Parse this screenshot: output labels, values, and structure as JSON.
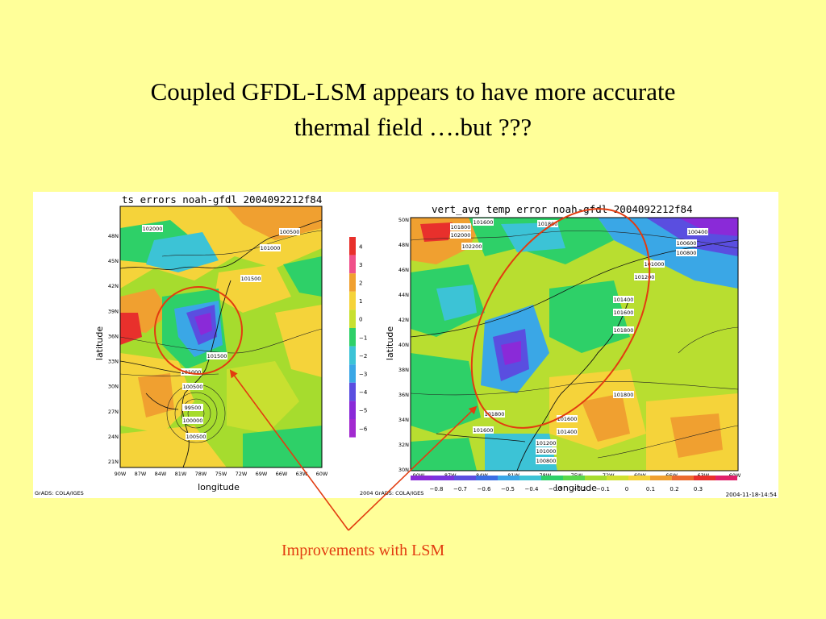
{
  "slide": {
    "title_line1": "Coupled GFDL-LSM appears to have more accurate",
    "title_line2": "thermal field ….but ???",
    "caption": "Improvements with LSM"
  },
  "colors": {
    "background": "#FFFF99",
    "annotation": "#e23c10"
  },
  "left_map": {
    "title": "ts errors noah-gfdl 2004092212f84",
    "ylabel": "latitude",
    "xlabel": "longitude",
    "lat_ticks": [
      "48N",
      "45N",
      "42N",
      "39N",
      "36N",
      "33N",
      "30N",
      "27N",
      "24N",
      "21N"
    ],
    "lon_ticks": [
      "90W",
      "87W",
      "84W",
      "81W",
      "78W",
      "75W",
      "72W",
      "69W",
      "66W",
      "63W",
      "60W"
    ],
    "pressure_labels": [
      "102000",
      "100500",
      "101000",
      "101500",
      "101500",
      "101000",
      "100500",
      "99500",
      "100000",
      "100500"
    ],
    "colorbar_ticks": [
      "4",
      "3",
      "2",
      "1",
      "0",
      "−1",
      "−2",
      "−3",
      "−4",
      "−5",
      "−6"
    ],
    "credit": "GrADS: COLA/IGES"
  },
  "right_map": {
    "title": "vert_avg temp error noah-gfdl 2004092212f84",
    "ylabel": "latitude",
    "xlabel": "longitude",
    "lat_ticks": [
      "50N",
      "48N",
      "46N",
      "44N",
      "42N",
      "40N",
      "38N",
      "36N",
      "34N",
      "32N",
      "30N"
    ],
    "lon_ticks": [
      "90W",
      "87W",
      "84W",
      "81W",
      "78W",
      "75W",
      "72W",
      "69W",
      "66W",
      "63W",
      "60W"
    ],
    "pressure_labels": [
      "101600",
      "101800",
      "102000",
      "102200",
      "101800",
      "100400",
      "100600",
      "100800",
      "101000",
      "101200",
      "101400",
      "101600",
      "101800",
      "101800",
      "101600",
      "101400",
      "101200",
      "101000",
      "100800",
      "101800",
      "101600"
    ],
    "colorbar_ticks": [
      "−0.8",
      "−0.7",
      "−0.6",
      "−0.5",
      "−0.4",
      "−0.3",
      "−0.2",
      "−0.1",
      "0",
      "0.1",
      "0.2",
      "0.3"
    ],
    "credit": "2004 GrADS: COLA/IGES",
    "timestamp": "2004-11-18-14:54"
  }
}
